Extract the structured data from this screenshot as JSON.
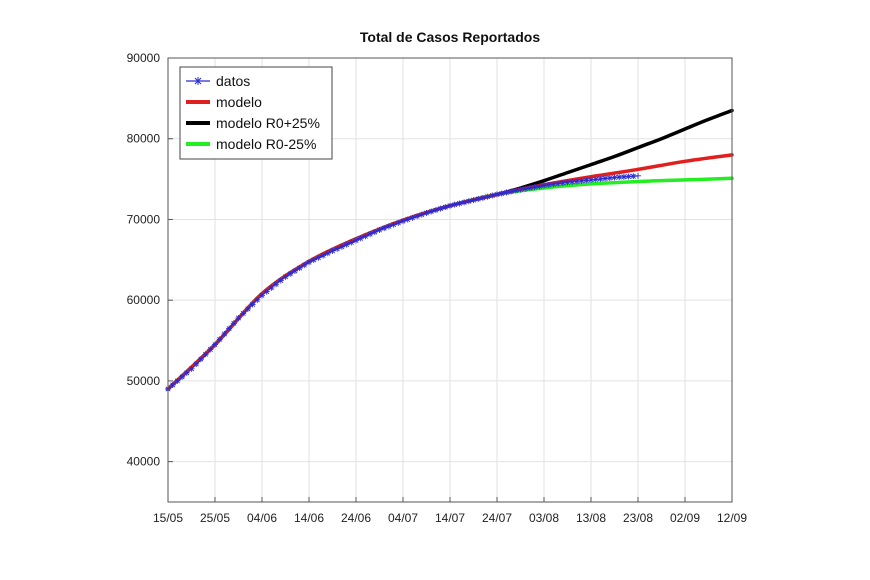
{
  "chart_data": {
    "type": "line",
    "title": "Total de Casos Reportados",
    "xlabel": "",
    "ylabel": "",
    "x_ticks": [
      "15/05",
      "25/05",
      "04/06",
      "14/06",
      "24/06",
      "04/07",
      "14/07",
      "24/07",
      "03/08",
      "13/08",
      "23/08",
      "02/09",
      "12/09"
    ],
    "x_range_days": [
      0,
      120
    ],
    "ylim": [
      35000,
      90000
    ],
    "y_ticks": [
      40000,
      50000,
      60000,
      70000,
      80000,
      90000
    ],
    "grid": true,
    "legend_position": "top-left",
    "series": [
      {
        "name": "datos",
        "color": "#2b2bd4",
        "marker": "asterisk",
        "x": [
          0,
          5,
          10,
          15,
          20,
          25,
          30,
          35,
          40,
          45,
          50,
          55,
          60,
          65,
          70,
          75,
          80,
          85,
          90,
          95,
          100
        ],
        "values": [
          49000,
          51500,
          54500,
          57800,
          60600,
          62900,
          64700,
          66100,
          67400,
          68700,
          69800,
          70800,
          71700,
          72400,
          73100,
          73700,
          74200,
          74600,
          74900,
          75200,
          75400
        ]
      },
      {
        "name": "modelo",
        "color": "#e01f1f",
        "x": [
          0,
          10,
          20,
          30,
          40,
          50,
          60,
          70,
          80,
          90,
          100,
          110,
          120
        ],
        "values": [
          49000,
          54500,
          60800,
          64800,
          67600,
          69900,
          71700,
          73100,
          74300,
          75300,
          76200,
          77200,
          78000
        ]
      },
      {
        "name": "modelo R0+25%",
        "color": "#000000",
        "x": [
          0,
          10,
          20,
          30,
          40,
          50,
          60,
          70,
          75,
          80,
          85,
          90,
          95,
          100,
          105,
          110,
          115,
          120
        ],
        "values": [
          49000,
          54500,
          60800,
          64800,
          67600,
          69900,
          71700,
          73100,
          73900,
          74800,
          75800,
          76800,
          77800,
          78900,
          80000,
          81200,
          82400,
          83500
        ]
      },
      {
        "name": "modelo R0-25%",
        "color": "#22ee22",
        "x": [
          0,
          10,
          20,
          30,
          40,
          50,
          60,
          70,
          80,
          90,
          100,
          110,
          120
        ],
        "values": [
          49000,
          54500,
          60800,
          64800,
          67600,
          69900,
          71700,
          73100,
          73900,
          74400,
          74700,
          74900,
          75100
        ]
      }
    ]
  }
}
